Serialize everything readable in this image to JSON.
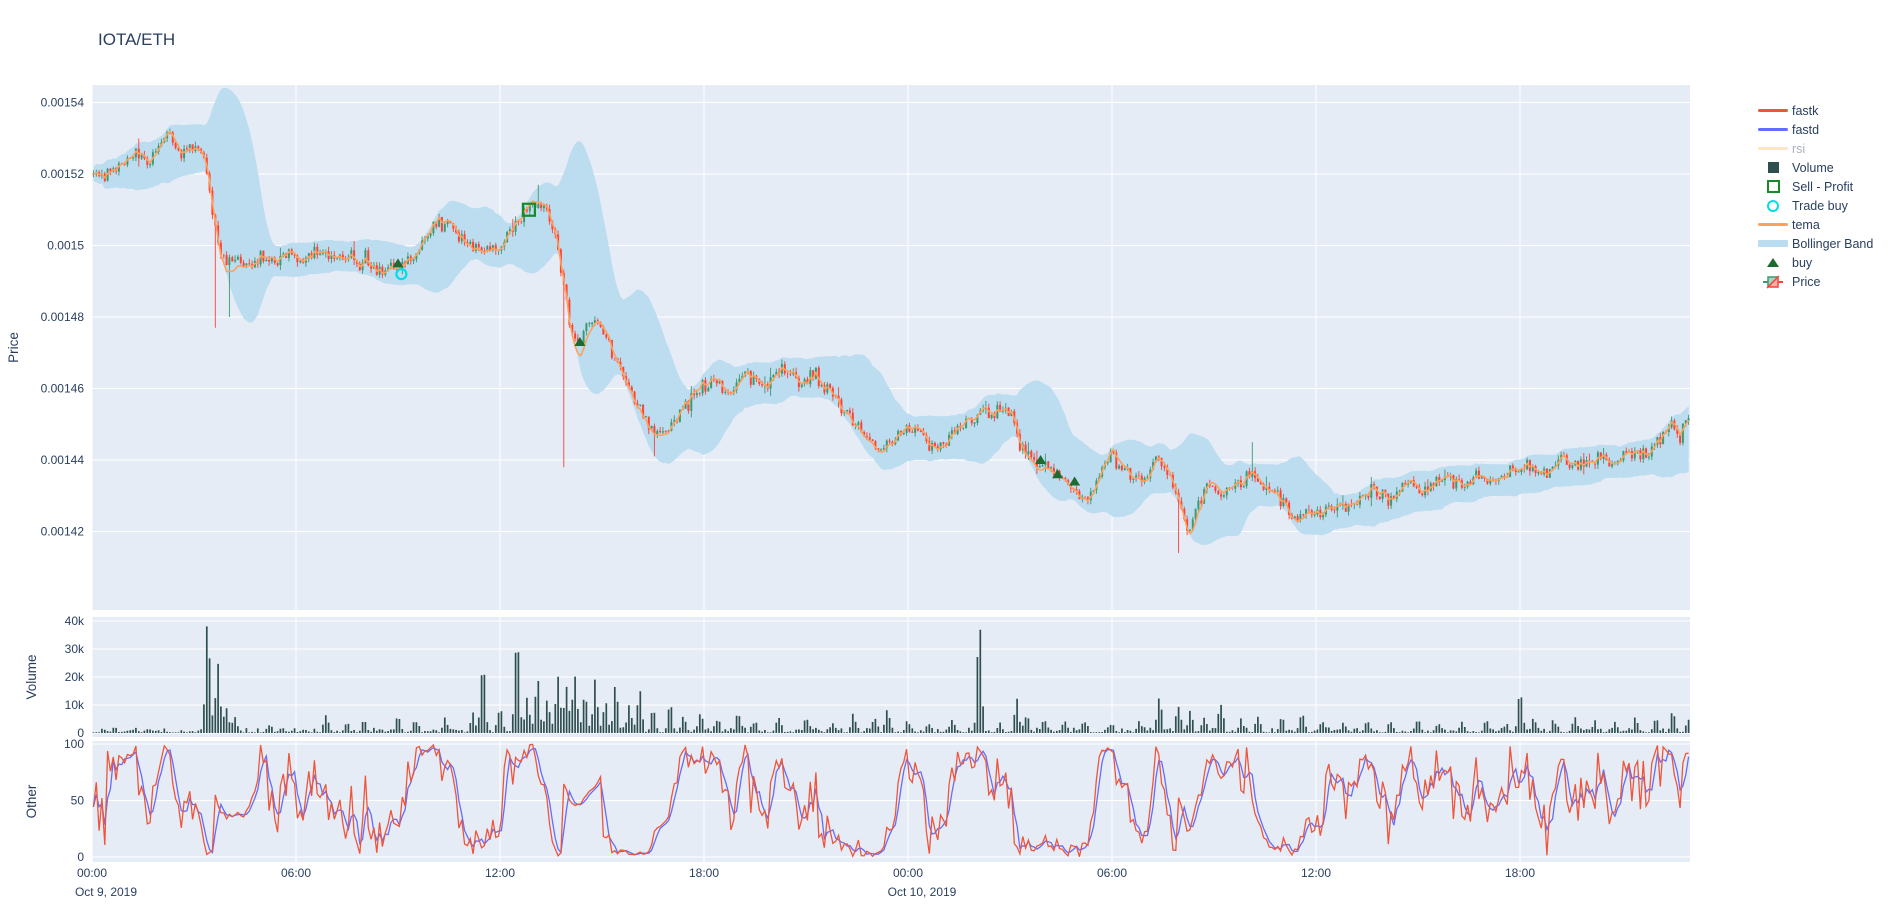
{
  "title": "IOTA/ETH",
  "colors": {
    "font": "#2a3f5f",
    "plot_background": "#E5ECF6",
    "grid": "#ffffff",
    "candle_up": "#3D9970",
    "candle_down": "#FF4136",
    "bollinger_fill": "#bcdcf0",
    "tema": "#FFA15A",
    "volume_bar": "#2F4F4F",
    "fastk": "#EF553B",
    "fastd": "#636EFA",
    "rsi": "#FECB52",
    "buy_marker": "#1c6b30",
    "sell_profit_marker": "#168c26",
    "trade_buy_marker": "#00dfe6"
  },
  "legend": {
    "items": [
      {
        "key": "fastk",
        "label": "fastk",
        "type": "line",
        "color": "#EF553B",
        "dimmed": false
      },
      {
        "key": "fastd",
        "label": "fastd",
        "type": "line",
        "color": "#636EFA",
        "dimmed": false
      },
      {
        "key": "rsi",
        "label": "rsi",
        "type": "line",
        "color": "#FECB52",
        "dimmed": true
      },
      {
        "key": "volume",
        "label": "Volume",
        "type": "square",
        "color": "#2F4F4F",
        "dimmed": false
      },
      {
        "key": "sell-profit",
        "label": "Sell - Profit",
        "type": "open-square",
        "color": "#168c26",
        "dimmed": false
      },
      {
        "key": "trade-buy",
        "label": "Trade buy",
        "type": "open-circle",
        "color": "#00dfe6",
        "dimmed": false
      },
      {
        "key": "tema",
        "label": "tema",
        "type": "line",
        "color": "#FFA15A",
        "dimmed": false
      },
      {
        "key": "bollinger",
        "label": "Bollinger Band",
        "type": "thick-line",
        "color": "#bcdcf0",
        "dimmed": false
      },
      {
        "key": "buy",
        "label": "buy",
        "type": "triangle",
        "color": "#1c6b30",
        "dimmed": false
      },
      {
        "key": "price",
        "label": "Price",
        "type": "candle",
        "color": "#3D9970",
        "dimmed": false
      }
    ]
  },
  "chart_data": {
    "type": "candlestick",
    "title": "IOTA/ETH",
    "hidden_series": [
      "rsi"
    ],
    "seed": 1337,
    "bar_minutes": 5,
    "hours_total": 47,
    "x_axis": {
      "tick_hours": [
        0,
        6,
        12,
        18,
        24,
        30,
        36,
        42
      ],
      "tick_labels": [
        "00:00",
        "06:00",
        "12:00",
        "18:00",
        "00:00",
        "06:00",
        "12:00",
        "18:00"
      ],
      "date_labels": [
        {
          "hour": 0,
          "label": "Oct 9, 2019"
        },
        {
          "hour": 24,
          "label": "Oct 10, 2019"
        }
      ]
    },
    "price_panel": {
      "ylabel": "Price",
      "tick_labels": [
        "0.00154",
        "0.00152",
        "0.0015",
        "0.00148",
        "0.00146",
        "0.00144",
        "0.00142"
      ],
      "tick_values": [
        0.00154,
        0.00152,
        0.0015,
        0.00148,
        0.00146,
        0.00144,
        0.00142
      ],
      "waypoints": [
        [
          0,
          0.001522
        ],
        [
          0.3,
          0.001519
        ],
        [
          0.8,
          0.001523
        ],
        [
          1.2,
          0.001526
        ],
        [
          1.6,
          0.001524
        ],
        [
          2.0,
          0.001528
        ],
        [
          2.3,
          0.001531
        ],
        [
          2.6,
          0.001526
        ],
        [
          2.9,
          0.001528
        ],
        [
          3.2,
          0.001527
        ],
        [
          3.45,
          0.001516
        ],
        [
          3.6,
          0.001505
        ],
        [
          3.8,
          0.001498
        ],
        [
          4.0,
          0.001494
        ],
        [
          4.3,
          0.001497
        ],
        [
          4.6,
          0.001494
        ],
        [
          5.0,
          0.001497
        ],
        [
          5.4,
          0.001495
        ],
        [
          5.8,
          0.001498
        ],
        [
          6.2,
          0.001496
        ],
        [
          6.6,
          0.001499
        ],
        [
          7.0,
          0.001496
        ],
        [
          7.4,
          0.001498
        ],
        [
          7.8,
          0.001495
        ],
        [
          8.1,
          0.001497
        ],
        [
          8.4,
          0.001492
        ],
        [
          8.7,
          0.001494
        ],
        [
          9.0,
          0.001493
        ],
        [
          9.3,
          0.001496
        ],
        [
          9.7,
          0.001501
        ],
        [
          10.1,
          0.001505
        ],
        [
          10.5,
          0.001507
        ],
        [
          10.9,
          0.001502
        ],
        [
          11.2,
          0.001498
        ],
        [
          11.6,
          0.0015
        ],
        [
          12.0,
          0.001499
        ],
        [
          12.4,
          0.001504
        ],
        [
          12.85,
          0.001511
        ],
        [
          13.1,
          0.001513
        ],
        [
          13.35,
          0.00151
        ],
        [
          13.6,
          0.001504
        ],
        [
          13.85,
          0.00149
        ],
        [
          14.1,
          0.001475
        ],
        [
          14.35,
          0.001473
        ],
        [
          14.6,
          0.001477
        ],
        [
          14.9,
          0.001479
        ],
        [
          15.3,
          0.00147
        ],
        [
          15.7,
          0.001462
        ],
        [
          16.1,
          0.001455
        ],
        [
          16.5,
          0.001449
        ],
        [
          16.9,
          0.001448
        ],
        [
          17.3,
          0.001453
        ],
        [
          17.8,
          0.001459
        ],
        [
          18.3,
          0.001462
        ],
        [
          18.8,
          0.001459
        ],
        [
          19.3,
          0.001464
        ],
        [
          19.8,
          0.00146
        ],
        [
          20.3,
          0.001466
        ],
        [
          20.8,
          0.001462
        ],
        [
          21.3,
          0.001464
        ],
        [
          21.8,
          0.001458
        ],
        [
          22.3,
          0.001452
        ],
        [
          22.8,
          0.001447
        ],
        [
          23.2,
          0.001443
        ],
        [
          23.5,
          0.001446
        ],
        [
          23.8,
          0.001447
        ],
        [
          24.3,
          0.00145
        ],
        [
          24.7,
          0.001443
        ],
        [
          25.1,
          0.001446
        ],
        [
          25.6,
          0.00145
        ],
        [
          26.1,
          0.001453
        ],
        [
          26.6,
          0.001454
        ],
        [
          27.05,
          0.001453
        ],
        [
          27.3,
          0.001444
        ],
        [
          27.6,
          0.001441
        ],
        [
          27.9,
          0.00144
        ],
        [
          28.2,
          0.001437
        ],
        [
          28.5,
          0.001434
        ],
        [
          28.9,
          0.001431
        ],
        [
          29.3,
          0.00143
        ],
        [
          29.7,
          0.001438
        ],
        [
          30.0,
          0.001441
        ],
        [
          30.4,
          0.001437
        ],
        [
          30.9,
          0.001435
        ],
        [
          31.3,
          0.00144
        ],
        [
          31.6,
          0.001439
        ],
        [
          31.95,
          0.001428
        ],
        [
          32.2,
          0.00142
        ],
        [
          32.5,
          0.001427
        ],
        [
          32.8,
          0.001434
        ],
        [
          33.3,
          0.001431
        ],
        [
          33.8,
          0.001433
        ],
        [
          34.1,
          0.001437
        ],
        [
          34.5,
          0.001433
        ],
        [
          34.9,
          0.00143
        ],
        [
          35.3,
          0.001424
        ],
        [
          35.7,
          0.001426
        ],
        [
          36.2,
          0.001424
        ],
        [
          36.7,
          0.001427
        ],
        [
          37.2,
          0.001429
        ],
        [
          37.7,
          0.001432
        ],
        [
          38.2,
          0.001429
        ],
        [
          38.7,
          0.001433
        ],
        [
          39.2,
          0.001431
        ],
        [
          39.7,
          0.001435
        ],
        [
          40.2,
          0.001433
        ],
        [
          40.7,
          0.001436
        ],
        [
          41.2,
          0.001434
        ],
        [
          41.7,
          0.001437
        ],
        [
          42.2,
          0.001438
        ],
        [
          42.7,
          0.001436
        ],
        [
          43.2,
          0.00144
        ],
        [
          43.7,
          0.001438
        ],
        [
          44.2,
          0.001441
        ],
        [
          44.7,
          0.001439
        ],
        [
          45.2,
          0.001443
        ],
        [
          45.7,
          0.001441
        ],
        [
          46.1,
          0.001446
        ],
        [
          46.4,
          0.00145
        ],
        [
          46.7,
          0.001447
        ],
        [
          47.0,
          0.001453
        ]
      ],
      "wick_events": [
        {
          "t": 3.6,
          "side": "low",
          "price": 0.001477
        },
        {
          "t": 4.0,
          "side": "low",
          "price": 0.00148
        },
        {
          "t": 13.1,
          "side": "high",
          "price": 0.001517
        },
        {
          "t": 13.85,
          "side": "low",
          "price": 0.001438
        },
        {
          "t": 16.5,
          "side": "low",
          "price": 0.001441
        },
        {
          "t": 31.95,
          "side": "low",
          "price": 0.001414
        },
        {
          "t": 34.1,
          "side": "high",
          "price": 0.001445
        }
      ],
      "markers": {
        "buy": [
          [
            9.0,
            0.001495
          ],
          [
            14.35,
            0.001473
          ],
          [
            27.9,
            0.00144
          ],
          [
            28.4,
            0.001436
          ],
          [
            28.9,
            0.001434
          ]
        ],
        "trade_buy": [
          [
            9.1,
            0.001492
          ]
        ],
        "sell_profit": [
          [
            12.85,
            0.00151
          ]
        ]
      },
      "bollinger_window_bars": 20,
      "bollinger_stdev_mult": 2,
      "tema_span_bars": 8
    },
    "volume_panel": {
      "ylabel": "Volume",
      "tick_labels": [
        "40k",
        "30k",
        "20k",
        "10k",
        "0"
      ],
      "tick_values": [
        40000,
        30000,
        20000,
        10000,
        0
      ],
      "base_noise": {
        "min": 200,
        "rand": 1700
      },
      "spikes": [
        [
          3.4,
          40200
        ],
        [
          3.7,
          23500
        ],
        [
          3.95,
          8500
        ],
        [
          4.2,
          5500
        ],
        [
          5.2,
          2500
        ],
        [
          6.9,
          5200
        ],
        [
          7.5,
          3000
        ],
        [
          8.0,
          4200
        ],
        [
          9.0,
          5600
        ],
        [
          9.5,
          4300
        ],
        [
          10.4,
          4100
        ],
        [
          11.2,
          6400
        ],
        [
          11.5,
          25300
        ],
        [
          12.0,
          8200
        ],
        [
          12.5,
          35200
        ],
        [
          12.8,
          12500
        ],
        [
          13.1,
          18500
        ],
        [
          13.4,
          11000
        ],
        [
          13.7,
          20000
        ],
        [
          13.95,
          16000
        ],
        [
          14.2,
          19500
        ],
        [
          14.5,
          13500
        ],
        [
          14.8,
          18000
        ],
        [
          15.1,
          10500
        ],
        [
          15.4,
          16500
        ],
        [
          15.8,
          9500
        ],
        [
          16.1,
          14500
        ],
        [
          16.5,
          7500
        ],
        [
          17.0,
          9800
        ],
        [
          17.4,
          5200
        ],
        [
          17.9,
          6800
        ],
        [
          18.4,
          4200
        ],
        [
          19.0,
          7200
        ],
        [
          19.5,
          3600
        ],
        [
          20.2,
          5200
        ],
        [
          21.0,
          4100
        ],
        [
          21.8,
          3200
        ],
        [
          22.4,
          5600
        ],
        [
          23.0,
          4600
        ],
        [
          23.4,
          7800
        ],
        [
          24.0,
          3600
        ],
        [
          24.6,
          3100
        ],
        [
          25.3,
          4200
        ],
        [
          26.1,
          38800
        ],
        [
          26.7,
          3200
        ],
        [
          27.2,
          10500
        ],
        [
          27.5,
          6200
        ],
        [
          28.0,
          4600
        ],
        [
          28.6,
          4100
        ],
        [
          29.2,
          3600
        ],
        [
          30.0,
          3100
        ],
        [
          30.8,
          3600
        ],
        [
          31.4,
          12300
        ],
        [
          31.95,
          9200
        ],
        [
          32.3,
          7200
        ],
        [
          32.7,
          5200
        ],
        [
          33.2,
          9900
        ],
        [
          33.8,
          4200
        ],
        [
          34.3,
          5200
        ],
        [
          35.0,
          4100
        ],
        [
          35.6,
          6200
        ],
        [
          36.2,
          3600
        ],
        [
          36.8,
          3100
        ],
        [
          37.5,
          4100
        ],
        [
          38.2,
          3600
        ],
        [
          39.0,
          4600
        ],
        [
          39.6,
          3100
        ],
        [
          40.3,
          3600
        ],
        [
          41.0,
          4100
        ],
        [
          41.6,
          3100
        ],
        [
          42.0,
          14800
        ],
        [
          42.4,
          5200
        ],
        [
          43.0,
          3600
        ],
        [
          43.6,
          4100
        ],
        [
          44.2,
          3100
        ],
        [
          44.8,
          3600
        ],
        [
          45.4,
          4100
        ],
        [
          46.0,
          5100
        ],
        [
          46.5,
          6600
        ],
        [
          47.0,
          5600
        ]
      ]
    },
    "oscillator_panel": {
      "ylabel": "Other",
      "tick_labels": [
        "100",
        "50",
        "0"
      ],
      "tick_values": [
        100,
        50,
        0
      ],
      "range": [
        0,
        100
      ],
      "series": [
        {
          "name": "fastk",
          "color": "#EF553B",
          "stoch_window_bars": 14
        },
        {
          "name": "fastd",
          "color": "#636EFA",
          "sma_of_fastk_bars": 3
        }
      ]
    }
  }
}
